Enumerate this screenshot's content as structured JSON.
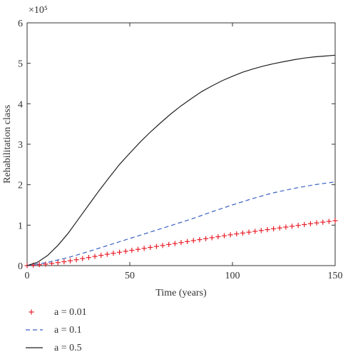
{
  "chart_data": {
    "type": "line",
    "xlabel": "Time (years)",
    "ylabel": "Rehabilitation class",
    "y_scale_label": "×10⁵",
    "xlim": [
      0,
      150
    ],
    "ylim": [
      0,
      6
    ],
    "y_unit_multiplier": 100000,
    "x_ticks": [
      0,
      50,
      100,
      150
    ],
    "y_ticks": [
      0,
      1,
      2,
      3,
      4,
      5,
      6
    ],
    "grid": false,
    "legend_position": "bottom-left, below plot",
    "series": [
      {
        "name": "a = 0.01",
        "style": "red plus markers",
        "color": "#e8202a",
        "x": [
          0,
          10,
          20,
          30,
          40,
          50,
          60,
          70,
          80,
          90,
          100,
          110,
          120,
          130,
          140,
          150
        ],
        "y": [
          0,
          0.04,
          0.11,
          0.2,
          0.29,
          0.37,
          0.45,
          0.53,
          0.61,
          0.69,
          0.77,
          0.84,
          0.91,
          0.98,
          1.05,
          1.11
        ]
      },
      {
        "name": "a = 0.1",
        "style": "blue dashed line",
        "color": "#3a62c4",
        "x": [
          0,
          10,
          20,
          30,
          40,
          50,
          60,
          70,
          80,
          90,
          100,
          110,
          120,
          130,
          140,
          150
        ],
        "y": [
          0,
          0.08,
          0.2,
          0.35,
          0.51,
          0.67,
          0.83,
          0.99,
          1.15,
          1.33,
          1.5,
          1.66,
          1.8,
          1.91,
          2.0,
          2.07
        ]
      },
      {
        "name": "a = 0.5",
        "style": "black solid line",
        "color": "#222222",
        "x": [
          0,
          5,
          10,
          15,
          20,
          25,
          30,
          35,
          40,
          45,
          50,
          55,
          60,
          65,
          70,
          75,
          80,
          85,
          90,
          95,
          100,
          105,
          110,
          115,
          120,
          125,
          130,
          135,
          140,
          145,
          150
        ],
        "y": [
          0,
          0.08,
          0.25,
          0.5,
          0.8,
          1.15,
          1.5,
          1.85,
          2.18,
          2.5,
          2.78,
          3.05,
          3.3,
          3.53,
          3.75,
          3.95,
          4.13,
          4.3,
          4.44,
          4.57,
          4.68,
          4.78,
          4.86,
          4.93,
          4.99,
          5.04,
          5.09,
          5.13,
          5.16,
          5.18,
          5.2
        ]
      }
    ]
  }
}
